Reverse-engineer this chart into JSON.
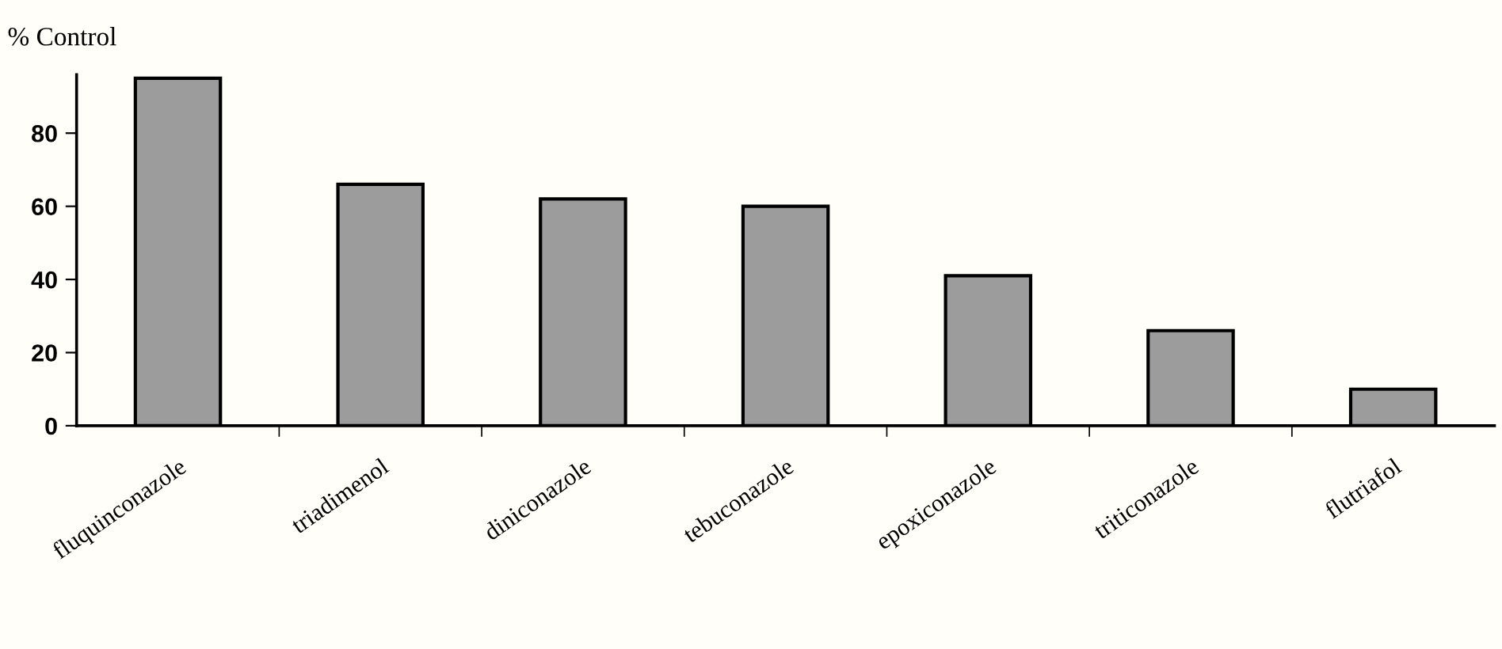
{
  "chart_data": {
    "type": "bar",
    "ylabel": "% Control",
    "categories": [
      "fluquinconazole",
      "triadimenol",
      "diniconazole",
      "tebuconazole",
      "epoxiconazole",
      "triticonazole",
      "flutriafol"
    ],
    "values": [
      95,
      66,
      62,
      60,
      41,
      26,
      10
    ],
    "color": "#9c9c9c",
    "ylim": [
      0,
      96
    ],
    "yticks": [
      0,
      20,
      40,
      60,
      80
    ],
    "grid": false
  }
}
